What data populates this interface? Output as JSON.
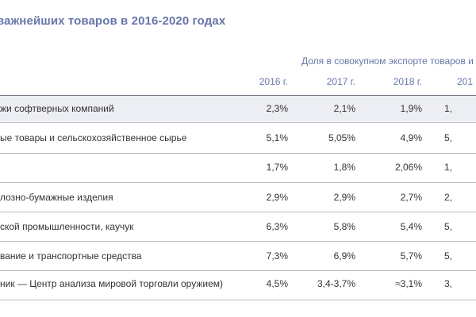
{
  "title": "важнейших товаров в 2016-2020 годах",
  "group_header": "Доля в совокупном экспорте товаров и",
  "years": [
    "2016 г.",
    "2017 г.",
    "2018 г.",
    "201"
  ],
  "rows": [
    {
      "label": "жи софтверных компаний",
      "values": [
        "2,3%",
        "2,1%",
        "1,9%",
        "1,"
      ]
    },
    {
      "label": "ые товары и сельскохозяйственное сырье",
      "values": [
        "5,1%",
        "5,05%",
        "4,9%",
        "5,"
      ]
    },
    {
      "label": "",
      "values": [
        "1,7%",
        "1,8%",
        "2,06%",
        "1,"
      ]
    },
    {
      "label": "лозно-бумажные изделия",
      "values": [
        "2,9%",
        "2,9%",
        "2,7%",
        "2,"
      ]
    },
    {
      "label": "ской промышленности, каучук",
      "values": [
        "6,3%",
        "5,8%",
        "5,4%",
        "5,"
      ]
    },
    {
      "label": "вание и транспортные средства",
      "values": [
        "7,3%",
        "6,9%",
        "5,7%",
        "5,"
      ]
    },
    {
      "label": "ник — Центр анализа мировой торговли оружием)",
      "values": [
        "4,5%",
        "3,4-3,7%",
        "≈3,1%",
        "3,"
      ]
    }
  ]
}
